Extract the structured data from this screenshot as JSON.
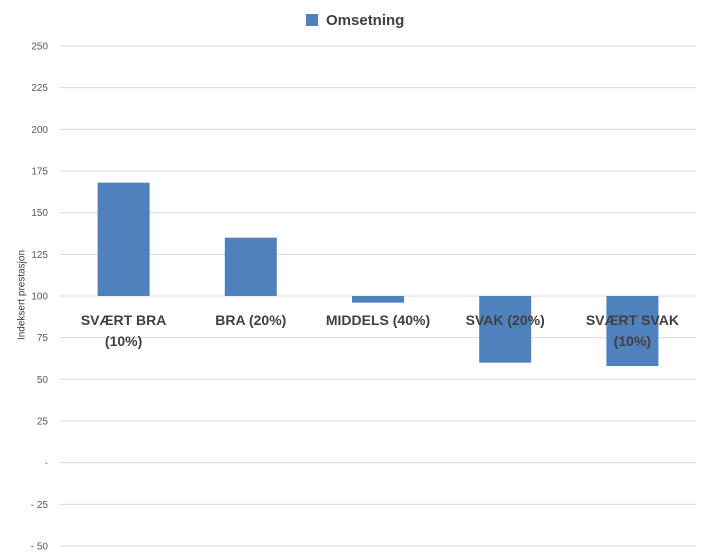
{
  "legend": {
    "label": "Omsetning",
    "color": "#4f81bd"
  },
  "chart_data": {
    "type": "bar",
    "baseline": 100,
    "categories": [
      "SVÆRT BRA (10%)",
      "BRA (20%)",
      "MIDDELS (40%)",
      "SVAK (20%)",
      "SVÆRT SVAK (10%)"
    ],
    "category_lines": [
      [
        "SVÆRT BRA",
        "(10%)"
      ],
      [
        "BRA (20%)"
      ],
      [
        "MIDDELS (40%)"
      ],
      [
        "SVAK (20%)"
      ],
      [
        "SVÆRT SVAK",
        "(10%)"
      ]
    ],
    "series": [
      {
        "name": "Omsetning",
        "color": "#4f81bd",
        "values": [
          168,
          135,
          96,
          60,
          58
        ]
      }
    ],
    "ylabel": "Indeksert prestasjon",
    "ylim": [
      -50,
      250
    ],
    "yticks": [
      250,
      225,
      200,
      175,
      150,
      125,
      100,
      75,
      50,
      25,
      0,
      -25,
      -50
    ],
    "ytick_labels": [
      "250",
      "225",
      "200",
      "175",
      "150",
      "125",
      "100",
      "75",
      "50",
      "25",
      "-",
      "- 25",
      "- 50"
    ],
    "grid": true,
    "legend_position": "top-center"
  }
}
